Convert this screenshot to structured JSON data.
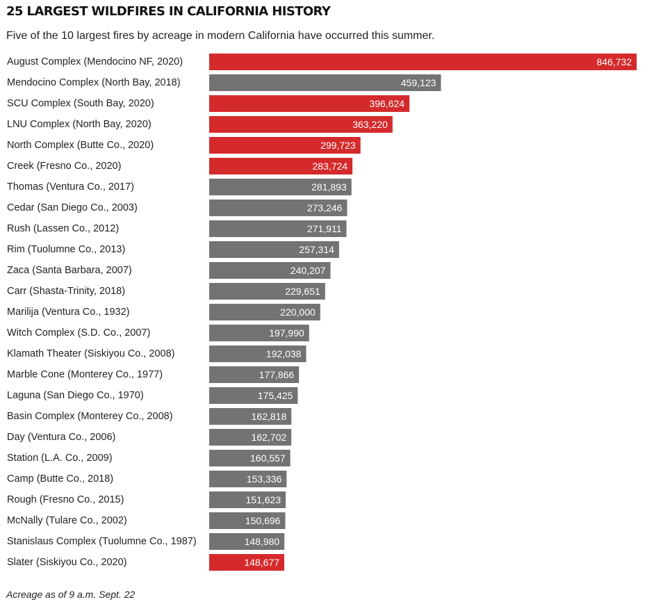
{
  "chart_data": {
    "type": "bar",
    "orientation": "horizontal",
    "title": "25 LARGEST WILDFIRES IN CALIFORNIA HISTORY",
    "subtitle": "Five of the 10 largest fires by acreage in modern California have occurred this summer.",
    "note": "Acreage as of 9 a.m. Sept. 22",
    "xlim": [
      0,
      846732
    ],
    "grid": false,
    "highlight_color": "#d42a2c",
    "base_color": "#737373",
    "categories": [
      "August Complex (Mendocino NF, 2020)",
      "Mendocino Complex (North Bay, 2018)",
      "SCU Complex (South Bay, 2020)",
      "LNU Complex (North Bay, 2020)",
      "North Complex (Butte Co., 2020)",
      "Creek (Fresno Co., 2020)",
      "Thomas (Ventura Co., 2017)",
      "Cedar (San Diego Co., 2003)",
      "Rush (Lassen Co., 2012)",
      "Rim (Tuolumne Co., 2013)",
      "Zaca (Santa Barbara, 2007)",
      "Carr (Shasta-Trinity, 2018)",
      "Marilija (Ventura Co., 1932)",
      "Witch Complex (S.D. Co., 2007)",
      "Klamath Theater (Siskiyou Co., 2008)",
      "Marble Cone (Monterey Co., 1977)",
      "Laguna (San Diego Co., 1970)",
      "Basin Complex (Monterey Co., 2008)",
      "Day (Ventura Co., 2006)",
      "Station (L.A. Co., 2009)",
      "Camp (Butte Co., 2018)",
      "Rough (Fresno Co., 2015)",
      "McNally (Tulare Co., 2002)",
      "Stanislaus Complex (Tuolumne Co., 1987)",
      "Slater (Siskiyou Co., 2020)"
    ],
    "values": [
      846732,
      459123,
      396624,
      363220,
      299723,
      283724,
      281893,
      273246,
      271911,
      257314,
      240207,
      229651,
      220000,
      197990,
      192038,
      177866,
      175425,
      162818,
      162702,
      160557,
      153336,
      151623,
      150696,
      148980,
      148677
    ],
    "value_labels": [
      "846,732",
      "459,123",
      "396,624",
      "363,220",
      "299,723",
      "283,724",
      "281,893",
      "273,246",
      "271,911",
      "257,314",
      "240,207",
      "229,651",
      "220,000",
      "197,990",
      "192,038",
      "177,866",
      "175,425",
      "162,818",
      "162,702",
      "160,557",
      "153,336",
      "151,623",
      "150,696",
      "148,980",
      "148,677"
    ],
    "highlighted": [
      true,
      false,
      true,
      true,
      true,
      true,
      false,
      false,
      false,
      false,
      false,
      false,
      false,
      false,
      false,
      false,
      false,
      false,
      false,
      false,
      false,
      false,
      false,
      false,
      true
    ]
  }
}
